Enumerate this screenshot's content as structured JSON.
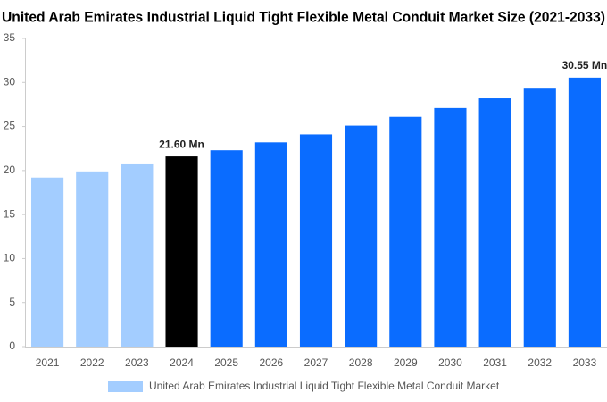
{
  "chart_data": {
    "type": "bar",
    "title": "United Arab Emirates Industrial Liquid Tight Flexible Metal Conduit Market Size (2021-2033)",
    "categories": [
      "2021",
      "2022",
      "2023",
      "2024",
      "2025",
      "2026",
      "2027",
      "2028",
      "2029",
      "2030",
      "2031",
      "2032",
      "2033"
    ],
    "series": [
      {
        "name": "United Arab Emirates Industrial Liquid Tight Flexible Metal Conduit Market",
        "color": "#a3cdff",
        "values": [
          19.2,
          19.9,
          20.7,
          21.6,
          22.3,
          23.2,
          24.1,
          25.1,
          26.1,
          27.1,
          28.2,
          29.3,
          30.55
        ],
        "colors": [
          "#a3cdff",
          "#a3cdff",
          "#a3cdff",
          "#000000",
          "#0a6cff",
          "#0a6cff",
          "#0a6cff",
          "#0a6cff",
          "#0a6cff",
          "#0a6cff",
          "#0a6cff",
          "#0a6cff",
          "#0a6cff"
        ],
        "value_labels": [
          null,
          null,
          null,
          "21.60 Mn",
          null,
          null,
          null,
          null,
          null,
          null,
          null,
          null,
          "30.55 Mn"
        ]
      }
    ],
    "ylim": [
      0,
      35
    ],
    "yticks": [
      0,
      5,
      10,
      15,
      20,
      25,
      30,
      35
    ],
    "grid": false
  }
}
